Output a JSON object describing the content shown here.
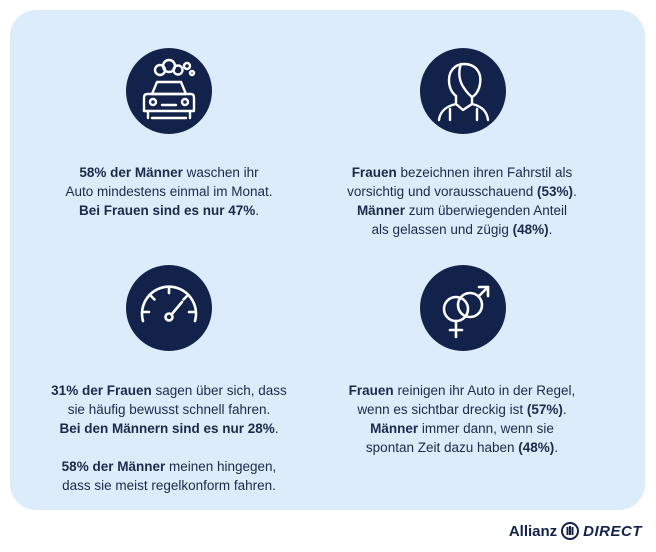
{
  "cards": [
    {
      "icon": "car-wash-icon",
      "lines": [
        [
          {
            "b": "58% der Männer"
          },
          {
            "t": " waschen ihr"
          }
        ],
        [
          {
            "t": "Auto mindestens einmal im Monat."
          }
        ],
        [
          {
            "b": "Bei Frauen sind es nur 47%"
          },
          {
            "t": "."
          }
        ]
      ]
    },
    {
      "icon": "person-profile-icon",
      "lines": [
        [
          {
            "b": "Frauen"
          },
          {
            "t": " bezeichnen ihren Fahrstil als"
          }
        ],
        [
          {
            "t": "vorsichtig und vorausschauend "
          },
          {
            "b": "(53%)"
          },
          {
            "t": "."
          }
        ],
        [
          {
            "b": "Männer"
          },
          {
            "t": " zum überwiegenden Anteil"
          }
        ],
        [
          {
            "t": "als gelassen und zügig "
          },
          {
            "b": "(48%)"
          },
          {
            "t": "."
          }
        ]
      ]
    },
    {
      "icon": "speedometer-icon",
      "lines": [
        [
          {
            "b": "31% der Frauen"
          },
          {
            "t": " sagen über sich, dass"
          }
        ],
        [
          {
            "t": "sie häufig bewusst schnell fahren."
          }
        ],
        [
          {
            "b": "Bei den Männern sind es nur 28%"
          },
          {
            "t": "."
          }
        ],
        [],
        [
          {
            "b": "58% der Männer"
          },
          {
            "t": " meinen hingegen,"
          }
        ],
        [
          {
            "t": "dass sie meist regelkonform fahren."
          }
        ]
      ]
    },
    {
      "icon": "gender-symbols-icon",
      "lines": [
        [
          {
            "b": "Frauen"
          },
          {
            "t": " reinigen ihr Auto in der Regel,"
          }
        ],
        [
          {
            "t": "wenn es sichtbar dreckig ist "
          },
          {
            "b": "(57%)"
          },
          {
            "t": "."
          }
        ],
        [
          {
            "b": "Männer"
          },
          {
            "t": " immer dann, wenn sie"
          }
        ],
        [
          {
            "t": "spontan Zeit dazu haben "
          },
          {
            "b": "(48%)"
          },
          {
            "t": "."
          }
        ]
      ]
    }
  ],
  "brand": {
    "name": "Allianz",
    "product": "DIRECT"
  },
  "colors": {
    "panel": "#dcecfb",
    "icon_bg": "#13224a",
    "text": "#1b2a4a"
  }
}
